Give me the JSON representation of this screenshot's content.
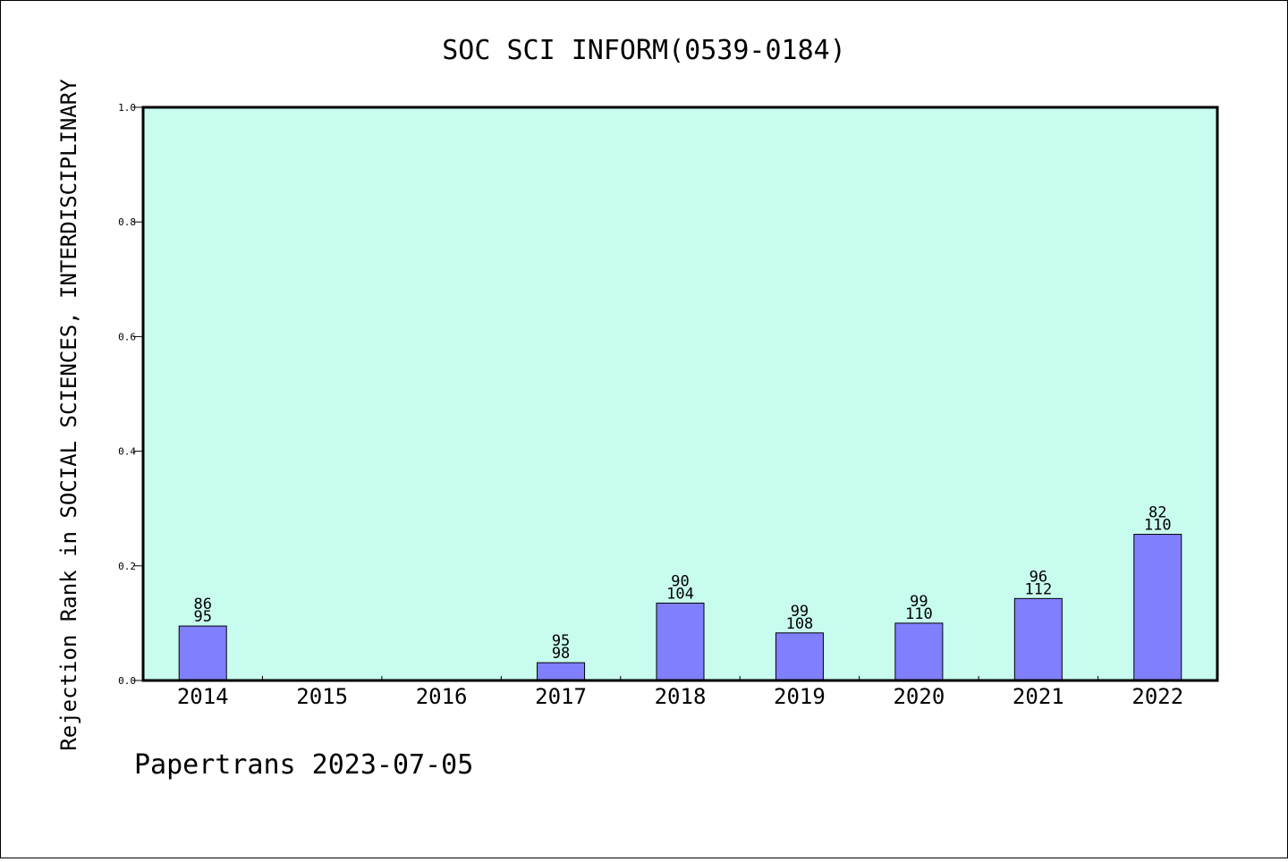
{
  "chart_data": {
    "type": "bar",
    "title": "SOC SCI INFORM(0539-0184)",
    "ylabel": "Rejection Rank in SOCIAL SCIENCES, INTERDISCIPLINARY",
    "xlabel": "",
    "ylim": [
      0,
      1.0
    ],
    "yticks": [
      0.0,
      0.2,
      0.4,
      0.6,
      0.8,
      1.0
    ],
    "ytick_labels": [
      "0.0",
      "0.2",
      "0.4",
      "0.6",
      "0.8",
      "1.0"
    ],
    "grid": false,
    "categories": [
      "2014",
      "2015",
      "2016",
      "2017",
      "2018",
      "2019",
      "2020",
      "2021",
      "2022"
    ],
    "values": [
      0.095,
      null,
      null,
      0.031,
      0.135,
      0.083,
      0.1,
      0.143,
      0.255
    ],
    "label_top": [
      "86",
      "",
      "",
      "95",
      "90",
      "99",
      "99",
      "96",
      "82"
    ],
    "label_bottom": [
      "95",
      "",
      "",
      "98",
      "104",
      "108",
      "110",
      "112",
      "110"
    ],
    "plot_bg_color": "#c8fcee",
    "bar_color": "#8080ff"
  },
  "footer": "Papertrans 2023-07-05"
}
